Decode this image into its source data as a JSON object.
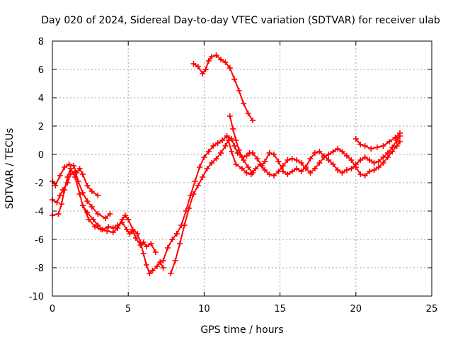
{
  "chart_data": {
    "type": "scatter",
    "title": "Day 020 of 2024, Sidereal Day-to-day VTEC variation (SDTVAR) for receiver ulab",
    "xlabel": "GPS time / hours",
    "ylabel": "SDTVAR / TECUs",
    "xlim": [
      0,
      25
    ],
    "ylim": [
      -10,
      8
    ],
    "xticks": [
      0,
      5,
      10,
      15,
      20,
      25
    ],
    "yticks": [
      -10,
      -8,
      -6,
      -4,
      -2,
      0,
      2,
      4,
      6,
      8
    ],
    "grid": true,
    "legend": "none",
    "marker": "plus",
    "color": "#ff0000",
    "series": [
      {
        "name": "segment-a",
        "points": [
          [
            0.0,
            -1.9
          ],
          [
            0.2,
            -2.2
          ],
          [
            0.5,
            -1.5
          ],
          [
            0.8,
            -0.9
          ],
          [
            1.1,
            -0.7
          ],
          [
            1.4,
            -0.8
          ],
          [
            1.6,
            -1.3
          ],
          [
            1.8,
            -1.0
          ],
          [
            2.0,
            -1.4
          ],
          [
            2.3,
            -2.2
          ],
          [
            2.6,
            -2.6
          ],
          [
            3.0,
            -2.9
          ]
        ]
      },
      {
        "name": "segment-b",
        "points": [
          [
            0.0,
            -3.2
          ],
          [
            0.3,
            -3.4
          ],
          [
            0.5,
            -2.9
          ],
          [
            0.7,
            -2.5
          ],
          [
            1.0,
            -2.0
          ],
          [
            1.2,
            -1.4
          ],
          [
            1.5,
            -1.2
          ],
          [
            1.7,
            -1.9
          ],
          [
            2.0,
            -2.7
          ],
          [
            2.3,
            -3.3
          ],
          [
            2.6,
            -3.7
          ],
          [
            3.0,
            -4.2
          ],
          [
            3.5,
            -4.5
          ],
          [
            3.8,
            -4.2
          ]
        ]
      },
      {
        "name": "segment-c",
        "points": [
          [
            0.0,
            -4.3
          ],
          [
            0.4,
            -4.2
          ],
          [
            0.6,
            -3.5
          ],
          [
            0.8,
            -2.5
          ],
          [
            1.0,
            -1.6
          ],
          [
            1.2,
            -1.0
          ],
          [
            1.5,
            -1.6
          ],
          [
            1.8,
            -2.8
          ],
          [
            2.0,
            -3.6
          ],
          [
            2.3,
            -4.1
          ],
          [
            2.7,
            -4.6
          ],
          [
            3.0,
            -5.0
          ],
          [
            3.3,
            -5.3
          ],
          [
            3.7,
            -5.1
          ],
          [
            4.0,
            -5.2
          ],
          [
            4.3,
            -5.0
          ],
          [
            4.6,
            -4.8
          ],
          [
            4.9,
            -5.3
          ],
          [
            5.1,
            -5.6
          ],
          [
            5.3,
            -5.4
          ],
          [
            5.5,
            -5.9
          ],
          [
            5.8,
            -6.4
          ],
          [
            6.0,
            -6.2
          ],
          [
            6.2,
            -6.5
          ],
          [
            6.5,
            -6.3
          ],
          [
            6.8,
            -6.9
          ]
        ]
      },
      {
        "name": "segment-d",
        "points": [
          [
            2.0,
            -3.6
          ],
          [
            2.4,
            -4.6
          ],
          [
            2.8,
            -5.1
          ],
          [
            3.2,
            -5.3
          ],
          [
            3.6,
            -5.4
          ],
          [
            4.0,
            -5.5
          ],
          [
            4.3,
            -5.2
          ],
          [
            4.6,
            -4.6
          ],
          [
            4.8,
            -4.3
          ],
          [
            5.0,
            -4.6
          ],
          [
            5.3,
            -5.3
          ],
          [
            5.6,
            -5.6
          ],
          [
            5.8,
            -6.2
          ],
          [
            6.0,
            -7.0
          ],
          [
            6.2,
            -7.8
          ],
          [
            6.4,
            -8.4
          ],
          [
            6.6,
            -8.2
          ],
          [
            6.9,
            -7.9
          ],
          [
            7.1,
            -7.6
          ],
          [
            7.3,
            -8.0
          ]
        ]
      },
      {
        "name": "segment-e",
        "points": [
          [
            7.3,
            -7.5
          ],
          [
            7.6,
            -6.6
          ],
          [
            7.9,
            -6.0
          ],
          [
            8.2,
            -5.6
          ],
          [
            8.5,
            -5.0
          ],
          [
            8.8,
            -4.0
          ],
          [
            9.1,
            -2.9
          ],
          [
            9.4,
            -1.9
          ],
          [
            9.7,
            -0.9
          ],
          [
            10.0,
            -0.2
          ],
          [
            10.3,
            0.2
          ],
          [
            10.6,
            0.6
          ],
          [
            10.9,
            0.8
          ],
          [
            11.2,
            1.0
          ],
          [
            11.5,
            1.3
          ],
          [
            11.8,
            1.1
          ],
          [
            12.0,
            0.6
          ],
          [
            12.2,
            0.1
          ],
          [
            12.5,
            -0.2
          ],
          [
            12.8,
            -0.1
          ],
          [
            13.0,
            0.1
          ],
          [
            13.2,
            0.1
          ],
          [
            13.5,
            -0.3
          ],
          [
            13.8,
            -0.8
          ],
          [
            14.0,
            -0.5
          ],
          [
            14.3,
            0.1
          ],
          [
            14.6,
            0.0
          ],
          [
            14.9,
            -0.5
          ],
          [
            15.2,
            -1.2
          ],
          [
            15.5,
            -1.4
          ],
          [
            15.8,
            -1.2
          ],
          [
            16.1,
            -1.0
          ],
          [
            16.4,
            -1.2
          ],
          [
            16.7,
            -0.9
          ],
          [
            17.0,
            -0.3
          ],
          [
            17.3,
            0.1
          ],
          [
            17.6,
            0.2
          ],
          [
            17.9,
            -0.1
          ],
          [
            18.2,
            -0.4
          ],
          [
            18.5,
            -0.7
          ],
          [
            18.8,
            -1.1
          ],
          [
            19.1,
            -1.3
          ],
          [
            19.4,
            -1.1
          ],
          [
            19.7,
            -1.0
          ],
          [
            20.0,
            -0.7
          ],
          [
            20.3,
            -0.4
          ],
          [
            20.6,
            -0.2
          ],
          [
            20.9,
            -0.4
          ],
          [
            21.2,
            -0.6
          ],
          [
            21.5,
            -0.5
          ],
          [
            21.8,
            -0.2
          ],
          [
            22.1,
            0.1
          ],
          [
            22.4,
            0.5
          ],
          [
            22.7,
            1.0
          ],
          [
            22.9,
            1.3
          ]
        ]
      },
      {
        "name": "segment-f",
        "points": [
          [
            7.8,
            -8.4
          ],
          [
            8.1,
            -7.5
          ],
          [
            8.4,
            -6.3
          ],
          [
            8.7,
            -5.0
          ],
          [
            9.0,
            -3.8
          ],
          [
            9.3,
            -2.8
          ],
          [
            9.6,
            -2.2
          ],
          [
            9.9,
            -1.6
          ],
          [
            10.2,
            -1.0
          ],
          [
            10.5,
            -0.6
          ],
          [
            10.8,
            -0.3
          ],
          [
            11.1,
            0.1
          ],
          [
            11.4,
            0.6
          ],
          [
            11.6,
            1.0
          ],
          [
            11.8,
            0.2
          ],
          [
            12.1,
            -0.7
          ],
          [
            12.5,
            -1.0
          ],
          [
            12.8,
            -1.3
          ],
          [
            13.1,
            -1.4
          ],
          [
            13.4,
            -1.0
          ],
          [
            13.7,
            -0.7
          ],
          [
            14.0,
            -1.1
          ],
          [
            14.3,
            -1.4
          ],
          [
            14.6,
            -1.5
          ],
          [
            14.9,
            -1.2
          ],
          [
            15.2,
            -0.8
          ],
          [
            15.5,
            -0.4
          ],
          [
            15.8,
            -0.3
          ],
          [
            16.1,
            -0.4
          ],
          [
            16.4,
            -0.6
          ],
          [
            16.7,
            -1.0
          ],
          [
            17.0,
            -1.3
          ],
          [
            17.3,
            -1.0
          ],
          [
            17.6,
            -0.6
          ],
          [
            17.9,
            -0.2
          ],
          [
            18.2,
            0.0
          ],
          [
            18.5,
            0.2
          ],
          [
            18.8,
            0.4
          ],
          [
            19.1,
            0.2
          ],
          [
            19.4,
            -0.1
          ],
          [
            19.7,
            -0.4
          ],
          [
            20.0,
            -0.9
          ],
          [
            20.3,
            -1.4
          ],
          [
            20.6,
            -1.5
          ],
          [
            20.9,
            -1.2
          ],
          [
            21.2,
            -1.1
          ],
          [
            21.5,
            -0.9
          ],
          [
            21.8,
            -0.6
          ],
          [
            22.1,
            -0.2
          ],
          [
            22.4,
            0.2
          ],
          [
            22.7,
            0.6
          ],
          [
            22.9,
            0.9
          ]
        ]
      },
      {
        "name": "segment-g",
        "points": [
          [
            9.3,
            6.4
          ],
          [
            9.6,
            6.2
          ],
          [
            9.9,
            5.7
          ],
          [
            10.1,
            6.0
          ],
          [
            10.3,
            6.6
          ],
          [
            10.5,
            6.9
          ],
          [
            10.8,
            7.0
          ],
          [
            11.1,
            6.7
          ],
          [
            11.4,
            6.5
          ],
          [
            11.7,
            6.1
          ],
          [
            12.0,
            5.3
          ],
          [
            12.3,
            4.5
          ],
          [
            12.6,
            3.6
          ],
          [
            12.9,
            2.9
          ],
          [
            13.2,
            2.4
          ]
        ]
      },
      {
        "name": "segment-h",
        "points": [
          [
            11.7,
            2.7
          ],
          [
            11.9,
            1.8
          ],
          [
            12.1,
            1.0
          ],
          [
            12.3,
            0.3
          ],
          [
            12.6,
            -0.4
          ],
          [
            12.9,
            -0.9
          ],
          [
            13.2,
            -1.3
          ]
        ]
      },
      {
        "name": "segment-i",
        "points": [
          [
            20.0,
            1.1
          ],
          [
            20.3,
            0.7
          ],
          [
            20.6,
            0.6
          ],
          [
            21.0,
            0.4
          ],
          [
            21.4,
            0.5
          ],
          [
            21.8,
            0.6
          ],
          [
            22.2,
            0.9
          ],
          [
            22.6,
            1.2
          ],
          [
            22.9,
            1.5
          ]
        ]
      }
    ]
  }
}
